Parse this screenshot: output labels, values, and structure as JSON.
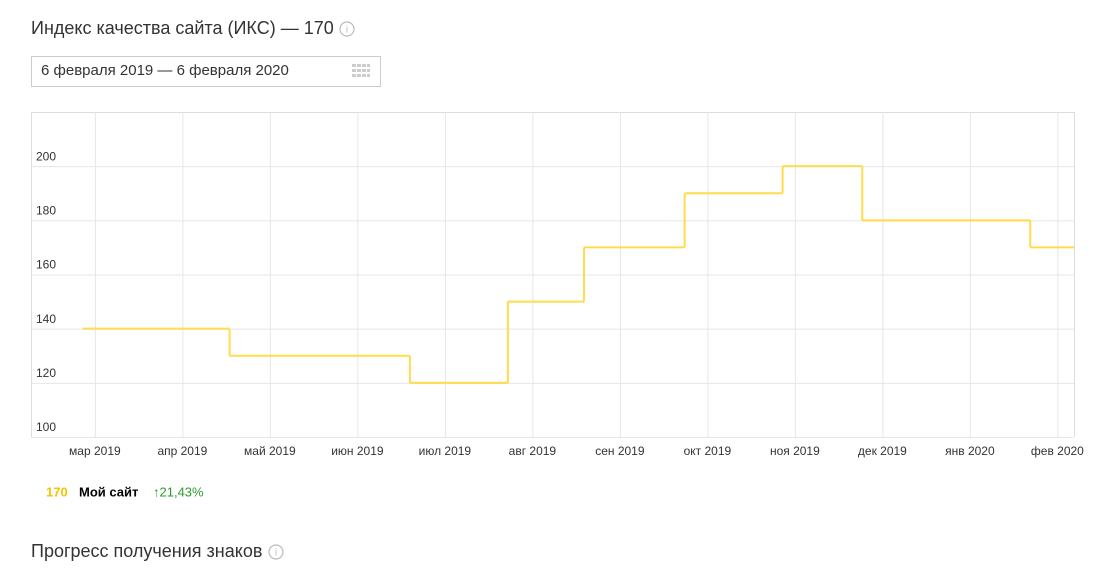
{
  "header": {
    "title": "Индекс качества сайта (ИКС) — 170"
  },
  "date_range": "6 февраля 2019 — 6 февраля 2020",
  "chart_data": {
    "type": "line",
    "step": "post",
    "x": [
      -0.14,
      1.54,
      3.6,
      4.72,
      5.59,
      6.74,
      7.86,
      8.77,
      10.69
    ],
    "series": [
      {
        "name": "Мой сайт",
        "color": "#ffdb4d",
        "values": [
          140,
          130,
          120,
          150,
          170,
          190,
          200,
          180,
          170
        ]
      }
    ],
    "xlim": [
      -0.73,
      11.19
    ],
    "xticks": [
      {
        "value": 0,
        "label": "мар 2019"
      },
      {
        "value": 1,
        "label": "апр 2019"
      },
      {
        "value": 2,
        "label": "май 2019"
      },
      {
        "value": 3,
        "label": "июн 2019"
      },
      {
        "value": 4,
        "label": "июл 2019"
      },
      {
        "value": 5,
        "label": "авг 2019"
      },
      {
        "value": 6,
        "label": "сен 2019"
      },
      {
        "value": 7,
        "label": "окт 2019"
      },
      {
        "value": 8,
        "label": "ноя 2019"
      },
      {
        "value": 9,
        "label": "дек 2019"
      },
      {
        "value": 10,
        "label": "янв 2020"
      },
      {
        "value": 11,
        "label": "фев 2020"
      }
    ],
    "ylim": [
      100,
      220
    ],
    "yticks": [
      100,
      120,
      140,
      160,
      180,
      200
    ],
    "grid": true,
    "legend_value": "170",
    "change": "↑21,43%"
  },
  "section_title": "Прогресс получения знаков"
}
